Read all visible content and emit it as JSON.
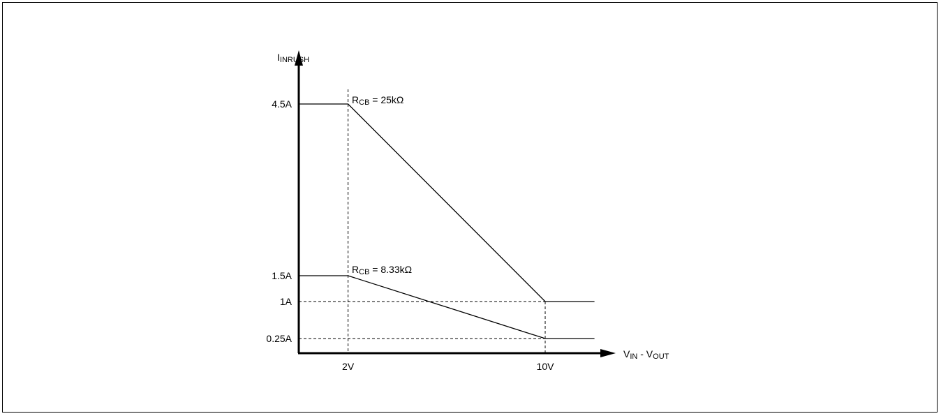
{
  "chart_data": {
    "type": "line",
    "title": "",
    "ylabel": {
      "main": "I",
      "sub": "INRUSH"
    },
    "xlabel": {
      "part1_main": "V",
      "part1_sub": "IN",
      "sep": " - ",
      "part2_main": "V",
      "part2_sub": "OUT"
    },
    "y_ticks": [
      {
        "value": 4.5,
        "label": "4.5A"
      },
      {
        "value": 1.5,
        "label": "1.5A"
      },
      {
        "value": 1.0,
        "label": "1A"
      },
      {
        "value": 0.25,
        "label": "0.25A"
      }
    ],
    "x_ticks": [
      {
        "value": 2,
        "label": "2V"
      },
      {
        "value": 10,
        "label": "10V"
      }
    ],
    "xlim": [
      0,
      12
    ],
    "ylim": [
      0,
      5.3
    ],
    "x_end": 12,
    "series": [
      {
        "label": {
          "main": "R",
          "sub": "CB",
          "rest": " = 25kΩ"
        },
        "points": [
          [
            0,
            4.5
          ],
          [
            2,
            4.5
          ],
          [
            10,
            1.0
          ],
          [
            12,
            1.0
          ]
        ]
      },
      {
        "label": {
          "main": "R",
          "sub": "CB",
          "rest": " = 8.33kΩ"
        },
        "points": [
          [
            0,
            1.5
          ],
          [
            2,
            1.5
          ],
          [
            10,
            0.25
          ],
          [
            12,
            0.25
          ]
        ]
      }
    ],
    "guides": {
      "vertical_at_x": [
        2,
        10
      ],
      "horizontal_at_y": [
        1.0,
        0.25
      ]
    },
    "grid": false,
    "legend": "none"
  }
}
